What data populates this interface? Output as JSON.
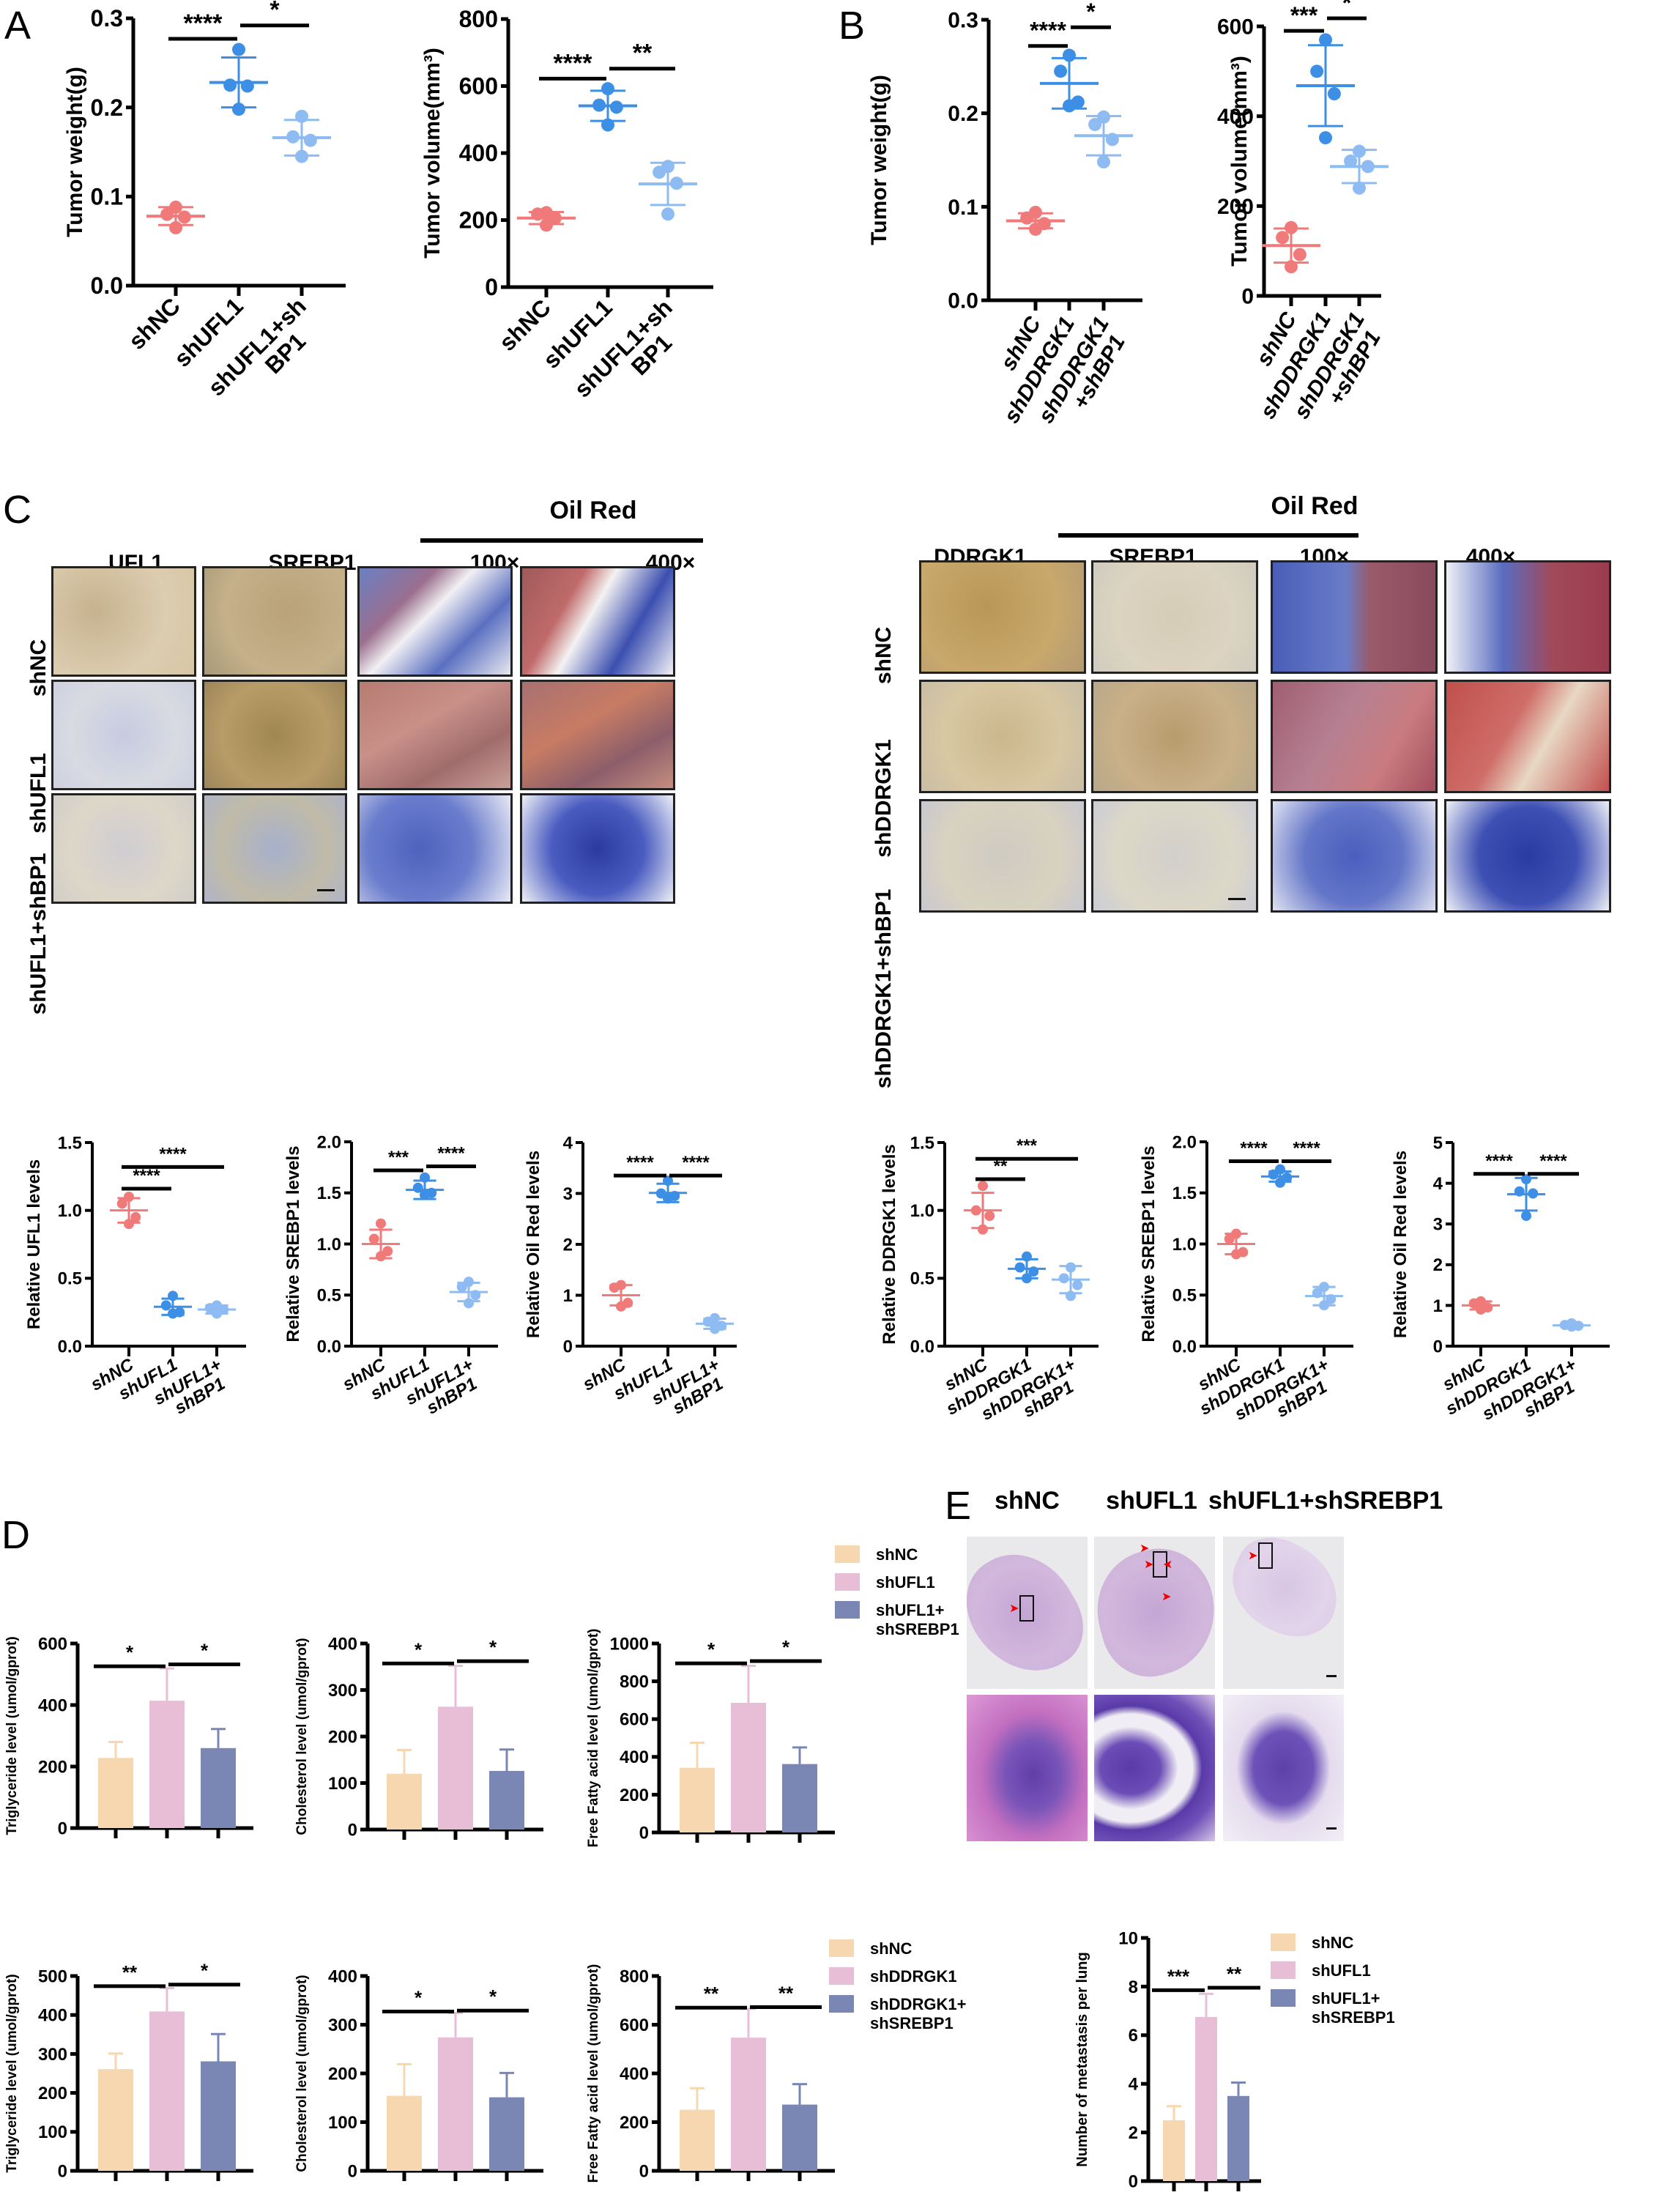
{
  "panel_letters": [
    "A",
    "B",
    "C",
    "D",
    "E"
  ],
  "colors": {
    "shNC_dot": "#f07a7a",
    "knockdown_dot": "#3d8fe6",
    "double_dot": "#8ebcf2",
    "bar_shNC": "#f6d7b0",
    "bar_knockdown": "#e8bdd6",
    "bar_double": "#7a87b5"
  },
  "panel_C": {
    "left": {
      "oil_red_title": "Oil Red",
      "columns": [
        "UFL1",
        "SREBP1",
        "100×",
        "400×"
      ],
      "rows": [
        "shNC",
        "shUFL1",
        "shUFL1+shBP1"
      ]
    },
    "right": {
      "oil_red_title": "Oil Red",
      "columns": [
        "DDRGK1",
        "SREBP1",
        "100×",
        "400×"
      ],
      "rows": [
        "shNC",
        "shDDRGK1",
        "shDDRGK1+shBP1"
      ]
    }
  },
  "panel_E": {
    "columns": [
      "shNC",
      "shUFL1",
      "shUFL1+shSREBP1"
    ]
  },
  "legends": {
    "D_top": [
      "shNC",
      "shUFL1",
      "shUFL1+\nshSREBP1"
    ],
    "D_bottom": [
      "shNC",
      "shDDRGK1",
      "shDDRGK1+\nshSREBP1"
    ],
    "E": [
      "shNC",
      "shUFL1",
      "shUFL1+\nshSREBP1"
    ]
  },
  "chart_data": [
    {
      "id": "A1",
      "panel": "A",
      "type": "scatter",
      "title": "",
      "xlabel": "",
      "ylabel": "Tumor weight(g)",
      "ylim": [
        0,
        0.3
      ],
      "yticks": [
        "0.0",
        "0.1",
        "0.2",
        "0.3"
      ],
      "categories": [
        "shNC",
        "shUFL1",
        "shUFL1+sh\nBP1"
      ],
      "series": [
        {
          "name": "shNC",
          "points": [
            0.088,
            0.08,
            0.077,
            0.065
          ],
          "mean": 0.078,
          "sd": 0.01
        },
        {
          "name": "shUFL1",
          "points": [
            0.265,
            0.225,
            0.224,
            0.198
          ],
          "mean": 0.228,
          "sd": 0.028
        },
        {
          "name": "shUFL1+shBP1",
          "points": [
            0.19,
            0.167,
            0.163,
            0.145
          ],
          "mean": 0.166,
          "sd": 0.02
        }
      ],
      "significance": [
        {
          "from": 0,
          "to": 1,
          "label": "****",
          "level": 0.277
        },
        {
          "from": 1,
          "to": 2,
          "label": "*",
          "level": 0.292
        }
      ]
    },
    {
      "id": "A2",
      "panel": "A",
      "type": "scatter",
      "title": "",
      "xlabel": "",
      "ylabel": "Tumor volume(mm³)",
      "ylim": [
        0,
        800
      ],
      "yticks": [
        "0",
        "200",
        "400",
        "600",
        "800"
      ],
      "categories": [
        "shNC",
        "shUFL1",
        "shUFL1+sh\nBP1"
      ],
      "series": [
        {
          "name": "shNC",
          "points": [
            222,
            218,
            206,
            185
          ],
          "mean": 206,
          "sd": 18
        },
        {
          "name": "shUFL1",
          "points": [
            592,
            543,
            537,
            484
          ],
          "mean": 541,
          "sd": 45
        },
        {
          "name": "shUFL1+shBP1",
          "points": [
            360,
            343,
            310,
            218
          ],
          "mean": 308,
          "sd": 63
        }
      ],
      "significance": [
        {
          "from": 0,
          "to": 1,
          "label": "****",
          "level": 622
        },
        {
          "from": 1,
          "to": 2,
          "label": "**",
          "level": 652
        }
      ]
    },
    {
      "id": "B1",
      "panel": "B",
      "type": "scatter",
      "title": "",
      "xlabel": "",
      "ylabel": "Tumor weight(g)",
      "ylim": [
        0,
        0.3
      ],
      "yticks": [
        "0.0",
        "0.1",
        "0.2",
        "0.3"
      ],
      "categories": [
        "shNC",
        "shDDRGK1",
        "shDDRGK1\n+shBP1"
      ],
      "series": [
        {
          "name": "shNC",
          "points": [
            0.094,
            0.088,
            0.082,
            0.076
          ],
          "mean": 0.085,
          "sd": 0.008
        },
        {
          "name": "shDDRGK1",
          "points": [
            0.262,
            0.245,
            0.212,
            0.208
          ],
          "mean": 0.232,
          "sd": 0.027
        },
        {
          "name": "shDDRGK1+shBP1",
          "points": [
            0.196,
            0.188,
            0.172,
            0.148
          ],
          "mean": 0.176,
          "sd": 0.021
        }
      ],
      "significance": [
        {
          "from": 0,
          "to": 1,
          "label": "****",
          "level": 0.272
        },
        {
          "from": 1,
          "to": 2,
          "label": "*",
          "level": 0.292
        }
      ]
    },
    {
      "id": "B2",
      "panel": "B",
      "type": "scatter",
      "title": "",
      "xlabel": "",
      "ylabel": "Tumor volume(mm³)",
      "ylim": [
        0,
        600
      ],
      "yticks": [
        "0",
        "200",
        "400",
        "600"
      ],
      "categories": [
        "shNC",
        "shDDRGK1",
        "shDDRGK1\n+shBP1"
      ],
      "series": [
        {
          "name": "shNC",
          "points": [
            152,
            130,
            92,
            65
          ],
          "mean": 112,
          "sd": 38
        },
        {
          "name": "shDDRGK1",
          "points": [
            570,
            500,
            450,
            352
          ],
          "mean": 468,
          "sd": 90
        },
        {
          "name": "shDDRGK1+shBP1",
          "points": [
            322,
            300,
            288,
            240
          ],
          "mean": 288,
          "sd": 37
        }
      ],
      "significance": [
        {
          "from": 0,
          "to": 1,
          "label": "***",
          "level": 590
        },
        {
          "from": 1,
          "to": 2,
          "label": "*",
          "level": 618
        }
      ]
    },
    {
      "id": "C1",
      "panel": "C",
      "type": "scatter",
      "title": "",
      "xlabel": "",
      "ylabel": "Relative UFL1 levels",
      "ylim": [
        0,
        1.5
      ],
      "yticks": [
        "0.0",
        "0.5",
        "1.0",
        "1.5"
      ],
      "categories": [
        "shNC",
        "shUFL1",
        "shUFL1+\nshBP1"
      ],
      "series": [
        {
          "name": "shNC",
          "points": [
            1.1,
            1.05,
            0.95,
            0.9
          ],
          "mean": 1.0,
          "sd": 0.09
        },
        {
          "name": "shUFL1",
          "points": [
            0.37,
            0.3,
            0.25,
            0.24
          ],
          "mean": 0.29,
          "sd": 0.06
        },
        {
          "name": "shUFL1+shBP1",
          "points": [
            0.3,
            0.28,
            0.27,
            0.24
          ],
          "mean": 0.27,
          "sd": 0.03
        }
      ],
      "significance": [
        {
          "from": 0,
          "to": 1,
          "label": "****",
          "level": 1.16
        },
        {
          "from": 0,
          "to": 2,
          "label": "****",
          "level": 1.32
        }
      ]
    },
    {
      "id": "C2",
      "panel": "C",
      "type": "scatter",
      "title": "",
      "xlabel": "",
      "ylabel": "Relative SREBP1 levels",
      "ylim": [
        0,
        2.0
      ],
      "yticks": [
        "0.0",
        "0.5",
        "1.0",
        "1.5",
        "2.0"
      ],
      "categories": [
        "shNC",
        "shUFL1",
        "shUFL1+\nshBP1"
      ],
      "series": [
        {
          "name": "shNC",
          "points": [
            1.2,
            1.05,
            0.93,
            0.88
          ],
          "mean": 1.0,
          "sd": 0.14
        },
        {
          "name": "shUFL1",
          "points": [
            1.65,
            1.55,
            1.5,
            1.48
          ],
          "mean": 1.53,
          "sd": 0.09
        },
        {
          "name": "shUFL1+shBP1",
          "points": [
            0.63,
            0.58,
            0.5,
            0.42
          ],
          "mean": 0.53,
          "sd": 0.09
        }
      ],
      "significance": [
        {
          "from": 0,
          "to": 1,
          "label": "***",
          "level": 1.72
        },
        {
          "from": 1,
          "to": 2,
          "label": "****",
          "level": 1.76
        }
      ]
    },
    {
      "id": "C3",
      "panel": "C",
      "type": "scatter",
      "title": "",
      "xlabel": "",
      "ylabel": "Relative Oil Red levels",
      "ylim": [
        0,
        4
      ],
      "yticks": [
        "0",
        "1",
        "2",
        "3",
        "4"
      ],
      "categories": [
        "shNC",
        "shUFL1",
        "shUFL1+\nshBP1"
      ],
      "series": [
        {
          "name": "shNC",
          "points": [
            1.2,
            1.15,
            0.85,
            0.78
          ],
          "mean": 1.0,
          "sd": 0.2
        },
        {
          "name": "shUFL1",
          "points": [
            3.25,
            3.0,
            2.95,
            2.9
          ],
          "mean": 3.01,
          "sd": 0.18
        },
        {
          "name": "shUFL1+shBP1",
          "points": [
            0.55,
            0.48,
            0.4,
            0.34
          ],
          "mean": 0.44,
          "sd": 0.1
        }
      ],
      "significance": [
        {
          "from": 0,
          "to": 1,
          "label": "****",
          "level": 3.35
        },
        {
          "from": 1,
          "to": 2,
          "label": "****",
          "level": 3.35
        }
      ]
    },
    {
      "id": "C4",
      "panel": "C",
      "type": "scatter",
      "title": "",
      "xlabel": "",
      "ylabel": "Relative DDRGK1 levels",
      "ylim": [
        0,
        1.5
      ],
      "yticks": [
        "0.0",
        "0.5",
        "1.0",
        "1.5"
      ],
      "categories": [
        "shNC",
        "shDDRGK1",
        "shDDRGK1+\nshBP1"
      ],
      "series": [
        {
          "name": "shNC",
          "points": [
            1.18,
            1.0,
            0.96,
            0.86
          ],
          "mean": 1.0,
          "sd": 0.13
        },
        {
          "name": "shDDRGK1",
          "points": [
            0.66,
            0.58,
            0.55,
            0.5
          ],
          "mean": 0.57,
          "sd": 0.07
        },
        {
          "name": "shDDRGK1+shBP1",
          "points": [
            0.58,
            0.5,
            0.45,
            0.37
          ],
          "mean": 0.49,
          "sd": 0.1
        }
      ],
      "significance": [
        {
          "from": 0,
          "to": 1,
          "label": "**",
          "level": 1.23
        },
        {
          "from": 0,
          "to": 2,
          "label": "***",
          "level": 1.38
        }
      ]
    },
    {
      "id": "C5",
      "panel": "C",
      "type": "scatter",
      "title": "",
      "xlabel": "",
      "ylabel": "Relative SREBP1 levels",
      "ylim": [
        0,
        2.0
      ],
      "yticks": [
        "0.0",
        "0.5",
        "1.0",
        "1.5",
        "2.0"
      ],
      "categories": [
        "shNC",
        "shDDRGK1",
        "shDDRGK1+\nshBP1"
      ],
      "series": [
        {
          "name": "shNC",
          "points": [
            1.1,
            1.05,
            0.92,
            0.9
          ],
          "mean": 1.0,
          "sd": 0.1
        },
        {
          "name": "shDDRGK1",
          "points": [
            1.73,
            1.68,
            1.65,
            1.6
          ],
          "mean": 1.66,
          "sd": 0.05
        },
        {
          "name": "shDDRGK1+shBP1",
          "points": [
            0.58,
            0.52,
            0.46,
            0.4
          ],
          "mean": 0.49,
          "sd": 0.09
        }
      ],
      "significance": [
        {
          "from": 0,
          "to": 1,
          "label": "****",
          "level": 1.81
        },
        {
          "from": 1,
          "to": 2,
          "label": "****",
          "level": 1.81
        }
      ]
    },
    {
      "id": "C6",
      "panel": "C",
      "type": "scatter",
      "title": "",
      "xlabel": "",
      "ylabel": "Relative Oil Red levels",
      "ylim": [
        0,
        5
      ],
      "yticks": [
        "0",
        "1",
        "2",
        "3",
        "4",
        "5"
      ],
      "categories": [
        "shNC",
        "shDDRGK1",
        "shDDRGK1+\nshBP1"
      ],
      "series": [
        {
          "name": "shNC",
          "points": [
            1.1,
            1.05,
            0.95,
            0.9
          ],
          "mean": 1.0,
          "sd": 0.1
        },
        {
          "name": "shDDRGK1",
          "points": [
            4.1,
            3.8,
            3.75,
            3.2
          ],
          "mean": 3.73,
          "sd": 0.4
        },
        {
          "name": "shDDRGK1+shBP1",
          "points": [
            0.56,
            0.52,
            0.5,
            0.48
          ],
          "mean": 0.51,
          "sd": 0.04
        }
      ],
      "significance": [
        {
          "from": 0,
          "to": 1,
          "label": "****",
          "level": 4.23
        },
        {
          "from": 1,
          "to": 2,
          "label": "****",
          "level": 4.23
        }
      ]
    },
    {
      "id": "D1",
      "panel": "D",
      "type": "bar",
      "title": "",
      "xlabel": "",
      "ylabel": "Triglyceride level (umol/gprot)",
      "ylim": [
        0,
        600
      ],
      "yticks": [
        "0",
        "200",
        "400",
        "600"
      ],
      "categories": [
        "shNC",
        "shUFL1",
        "shUFL1+shSREBP1"
      ],
      "values": [
        228,
        414,
        260
      ],
      "errors": [
        52,
        105,
        62
      ],
      "significance": [
        {
          "from": 0,
          "to": 1,
          "label": "*",
          "level": 526
        },
        {
          "from": 1,
          "to": 2,
          "label": "*",
          "level": 532
        }
      ]
    },
    {
      "id": "D2",
      "panel": "D",
      "type": "bar",
      "title": "",
      "xlabel": "",
      "ylabel": "Cholesterol level (umol/gprot)",
      "ylim": [
        0,
        400
      ],
      "yticks": [
        "0",
        "100",
        "200",
        "300",
        "400"
      ],
      "categories": [
        "shNC",
        "shUFL1",
        "shUFL1+shSREBP1"
      ],
      "values": [
        120,
        264,
        126
      ],
      "errors": [
        51,
        88,
        46
      ],
      "significance": [
        {
          "from": 0,
          "to": 1,
          "label": "*",
          "level": 357
        },
        {
          "from": 1,
          "to": 2,
          "label": "*",
          "level": 362
        }
      ]
    },
    {
      "id": "D3",
      "panel": "D",
      "type": "bar",
      "title": "",
      "xlabel": "",
      "ylabel": "Free Fatty acid level (umol/gprot)",
      "ylim": [
        0,
        1000
      ],
      "yticks": [
        "0",
        "200",
        "400",
        "600",
        "800",
        "1000"
      ],
      "categories": [
        "shNC",
        "shUFL1",
        "shUFL1+shSREBP1"
      ],
      "values": [
        342,
        686,
        362
      ],
      "errors": [
        133,
        196,
        88
      ],
      "significance": [
        {
          "from": 0,
          "to": 1,
          "label": "*",
          "level": 895
        },
        {
          "from": 1,
          "to": 2,
          "label": "*",
          "level": 907
        }
      ]
    },
    {
      "id": "D4",
      "panel": "D",
      "type": "bar",
      "title": "",
      "xlabel": "",
      "ylabel": "Triglyceride level (umol/gprot)",
      "ylim": [
        0,
        500
      ],
      "yticks": [
        "0",
        "100",
        "200",
        "300",
        "400",
        "500"
      ],
      "categories": [
        "shNC",
        "shDDRGK1",
        "shDDRGK1+shSREBP1"
      ],
      "values": [
        261,
        409,
        281
      ],
      "errors": [
        40,
        60,
        70
      ],
      "significance": [
        {
          "from": 0,
          "to": 1,
          "label": "**",
          "level": 474
        },
        {
          "from": 1,
          "to": 2,
          "label": "*",
          "level": 478
        }
      ]
    },
    {
      "id": "D5",
      "panel": "D",
      "type": "bar",
      "title": "",
      "xlabel": "",
      "ylabel": "Cholesterol level (umol/gprot)",
      "ylim": [
        0,
        400
      ],
      "yticks": [
        "0",
        "100",
        "200",
        "300",
        "400"
      ],
      "categories": [
        "shNC",
        "shDDRGK1",
        "shDDRGK1+shSREBP1"
      ],
      "values": [
        154,
        274,
        151
      ],
      "errors": [
        65,
        50,
        50
      ],
      "significance": [
        {
          "from": 0,
          "to": 1,
          "label": "*",
          "level": 327
        },
        {
          "from": 1,
          "to": 2,
          "label": "*",
          "level": 329
        }
      ]
    },
    {
      "id": "D6",
      "panel": "D",
      "type": "bar",
      "title": "",
      "xlabel": "",
      "ylabel": "Free Fatty acid level (umol/gprot)",
      "ylim": [
        0,
        800
      ],
      "yticks": [
        "0",
        "200",
        "400",
        "600",
        "800"
      ],
      "categories": [
        "shNC",
        "shDDRGK1",
        "shDDRGK1+shSREBP1"
      ],
      "values": [
        251,
        547,
        272
      ],
      "errors": [
        88,
        118,
        84
      ],
      "significance": [
        {
          "from": 0,
          "to": 1,
          "label": "**",
          "level": 670
        },
        {
          "from": 1,
          "to": 2,
          "label": "**",
          "level": 672
        }
      ]
    },
    {
      "id": "E1",
      "panel": "E",
      "type": "bar",
      "title": "",
      "xlabel": "",
      "ylabel": "Number of metastasis per lung",
      "ylim": [
        0,
        10
      ],
      "yticks": [
        "0",
        "2",
        "4",
        "6",
        "8",
        "10"
      ],
      "categories": [
        "shNC",
        "shUFL1",
        "shUFL1+shSREBP1"
      ],
      "values": [
        2.5,
        6.75,
        3.5
      ],
      "errors": [
        0.58,
        0.95,
        0.55
      ],
      "significance": [
        {
          "from": 0,
          "to": 1,
          "label": "***",
          "level": 7.85
        },
        {
          "from": 1,
          "to": 2,
          "label": "**",
          "level": 7.95
        }
      ]
    }
  ]
}
